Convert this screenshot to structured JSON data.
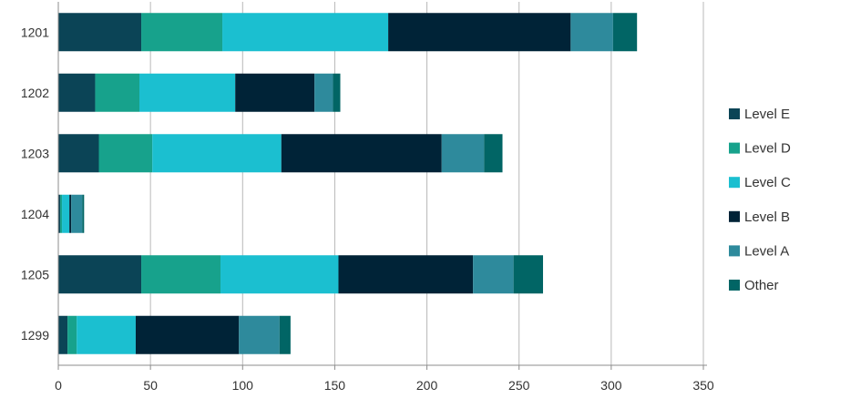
{
  "chart_data": {
    "type": "bar",
    "orientation": "horizontal",
    "stacked": true,
    "categories": [
      "1201",
      "1202",
      "1203",
      "1204",
      "1205",
      "1299"
    ],
    "series": [
      {
        "name": "Level E",
        "color": "#0b4456",
        "values": [
          45,
          20,
          22,
          1,
          45,
          5
        ]
      },
      {
        "name": "Level D",
        "color": "#17a28c",
        "values": [
          44,
          24,
          29,
          1,
          43,
          5
        ]
      },
      {
        "name": "Level C",
        "color": "#1bbfd0",
        "values": [
          90,
          52,
          70,
          4,
          64,
          32
        ]
      },
      {
        "name": "Level B",
        "color": "#002337",
        "values": [
          99,
          43,
          87,
          1,
          73,
          56
        ]
      },
      {
        "name": "Level A",
        "color": "#2e8a9c",
        "values": [
          23,
          10,
          23,
          6,
          22,
          22
        ]
      },
      {
        "name": "Other",
        "color": "#016565",
        "values": [
          13,
          4,
          10,
          1,
          16,
          6
        ]
      }
    ],
    "x_ticks": [
      0,
      50,
      100,
      150,
      200,
      250,
      300,
      350
    ],
    "xlim": [
      0,
      350
    ],
    "grid": true,
    "legend_position": "right"
  }
}
